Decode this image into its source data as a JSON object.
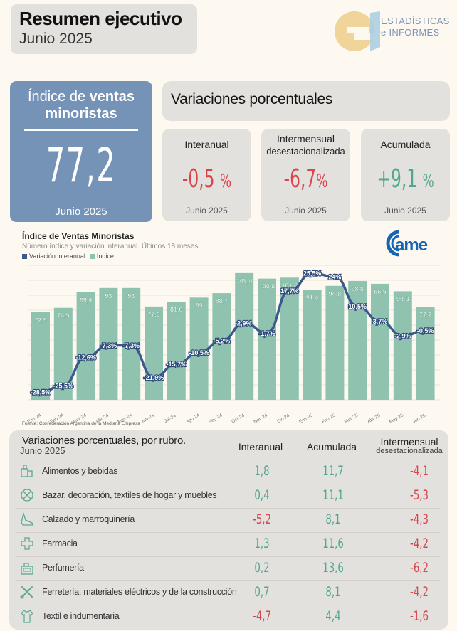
{
  "header": {
    "title": "Resumen ejecutivo",
    "subtitle": "Junio 2025"
  },
  "brand": {
    "logo_line1": "ESTADÍSTICAS",
    "logo_line2": "e INFORMES",
    "logo_icon": "ei-logo",
    "came_logo": "came"
  },
  "kpi": {
    "title_light": "Índice de ",
    "title_bold_1": "ventas",
    "title_bold_2": "minoristas",
    "value": "77,2",
    "date": "Junio 2025",
    "color": "#7592b7"
  },
  "variaciones": {
    "title": "Variaciones porcentuales",
    "cards": [
      {
        "label": "Interanual",
        "sublabel": "",
        "value": "-0,5",
        "unit": "%",
        "date": "Junio 2025",
        "sign": "neg"
      },
      {
        "label": "Intermensual",
        "sublabel": "desestacionalizada",
        "value": "-6,7",
        "unit": "%",
        "date": "Junio 2025",
        "sign": "neg"
      },
      {
        "label": "Acumulada",
        "sublabel": "",
        "value": "+9,1",
        "unit": "%",
        "date": "Junio 2025",
        "sign": "pos"
      }
    ]
  },
  "colors": {
    "negative": "#d9454b",
    "positive": "#4fa88f",
    "bar": "#8fc3b0",
    "line": "#3a5a8c"
  },
  "chart_data": {
    "type": "bar",
    "title": "Índice de Ventas Minoristas",
    "subtitle": "Número índice y variación interanual. Últimos 18 meses.",
    "legend": [
      "Variación interanual",
      "Índice"
    ],
    "legend_position": "top-left",
    "source": "Fuente: Confederación Argentina de la Mediana Empresa",
    "categories": [
      "Ene-24",
      "Feb-24",
      "Mar-24",
      "Abr-24",
      "May-24",
      "Jun-24",
      "Jul-24",
      "Ago-24",
      "Sep-24",
      "Oct-24",
      "Nov-24",
      "Dic-24",
      "Ene-25",
      "Feb-25",
      "Mar-25",
      "Abr-25",
      "May-25",
      "Jun-25"
    ],
    "series": [
      {
        "name": "Índice",
        "type": "bar",
        "values": [
          72.9,
          76.5,
          89.4,
          93,
          93,
          77.6,
          81.6,
          85,
          88.7,
          105.4,
          100.8,
          101.6,
          91.4,
          94.8,
          98.8,
          96.5,
          90.3,
          77.2
        ],
        "labels": [
          "72,9",
          "76,5",
          "89,4",
          "93",
          "93",
          "77,6",
          "81,6",
          "85",
          "88,7",
          "105,4",
          "100,8",
          "101,6",
          "91,4",
          "94,8",
          "98,8",
          "96,5",
          "90,3",
          "77,2"
        ]
      },
      {
        "name": "Variación interanual",
        "type": "line",
        "unit": "%",
        "values": [
          -28.5,
          -25.5,
          -12.6,
          -7.3,
          -7.3,
          -21.9,
          -15.7,
          -10.5,
          -5.2,
          2.9,
          -1.7,
          17.7,
          25.5,
          24,
          10.5,
          3.7,
          -2.9,
          -0.5
        ],
        "labels": [
          "-28,5%",
          "-25,5%",
          "-12,6%",
          "-7,3%",
          "-7,3%",
          "-21,9%",
          "-15,7%",
          "-10,5%",
          "-5,2%",
          "2,9%",
          "-1,7%",
          "17,7%",
          "25,5%",
          "24%",
          "10,5%",
          "3,7%",
          "-2,9%",
          "-0,5%"
        ]
      }
    ],
    "grid": true
  },
  "rubros": {
    "title": "Variaciones porcentuales, por rubro.",
    "subtitle": "Junio 2025",
    "headers": {
      "interanual": "Interanual",
      "acumulada": "Acumulada",
      "intermensual": "Intermensual",
      "intermensual_sub": "desestacionalizada"
    },
    "rows": [
      {
        "icon": "grocery-icon",
        "name": "Alimentos y bebidas",
        "interanual": "1,8",
        "acumulada": "11,7",
        "intermensual": "-4,1"
      },
      {
        "icon": "bazaar-icon",
        "name": "Bazar, decoración, textiles de hogar y muebles",
        "interanual": "0,4",
        "acumulada": "11,1",
        "intermensual": "-5,3"
      },
      {
        "icon": "shoe-icon",
        "name": "Calzado y marroquinería",
        "interanual": "-5,2",
        "acumulada": "8,1",
        "intermensual": "-4,3"
      },
      {
        "icon": "pharmacy-cross-icon",
        "name": "Farmacia",
        "interanual": "1,3",
        "acumulada": "11,6",
        "intermensual": "-4,2"
      },
      {
        "icon": "perfume-icon",
        "name": "Perfumería",
        "interanual": "0,2",
        "acumulada": "13,6",
        "intermensual": "-6,2"
      },
      {
        "icon": "tools-icon",
        "name": "Ferretería, materiales eléctricos y de la construcción",
        "interanual": "0,7",
        "acumulada": "8,1",
        "intermensual": "-4,2"
      },
      {
        "icon": "shirt-icon",
        "name": "Textil e indumentaria",
        "interanual": "-4,7",
        "acumulada": "4,4",
        "intermensual": "-1,6"
      }
    ]
  }
}
